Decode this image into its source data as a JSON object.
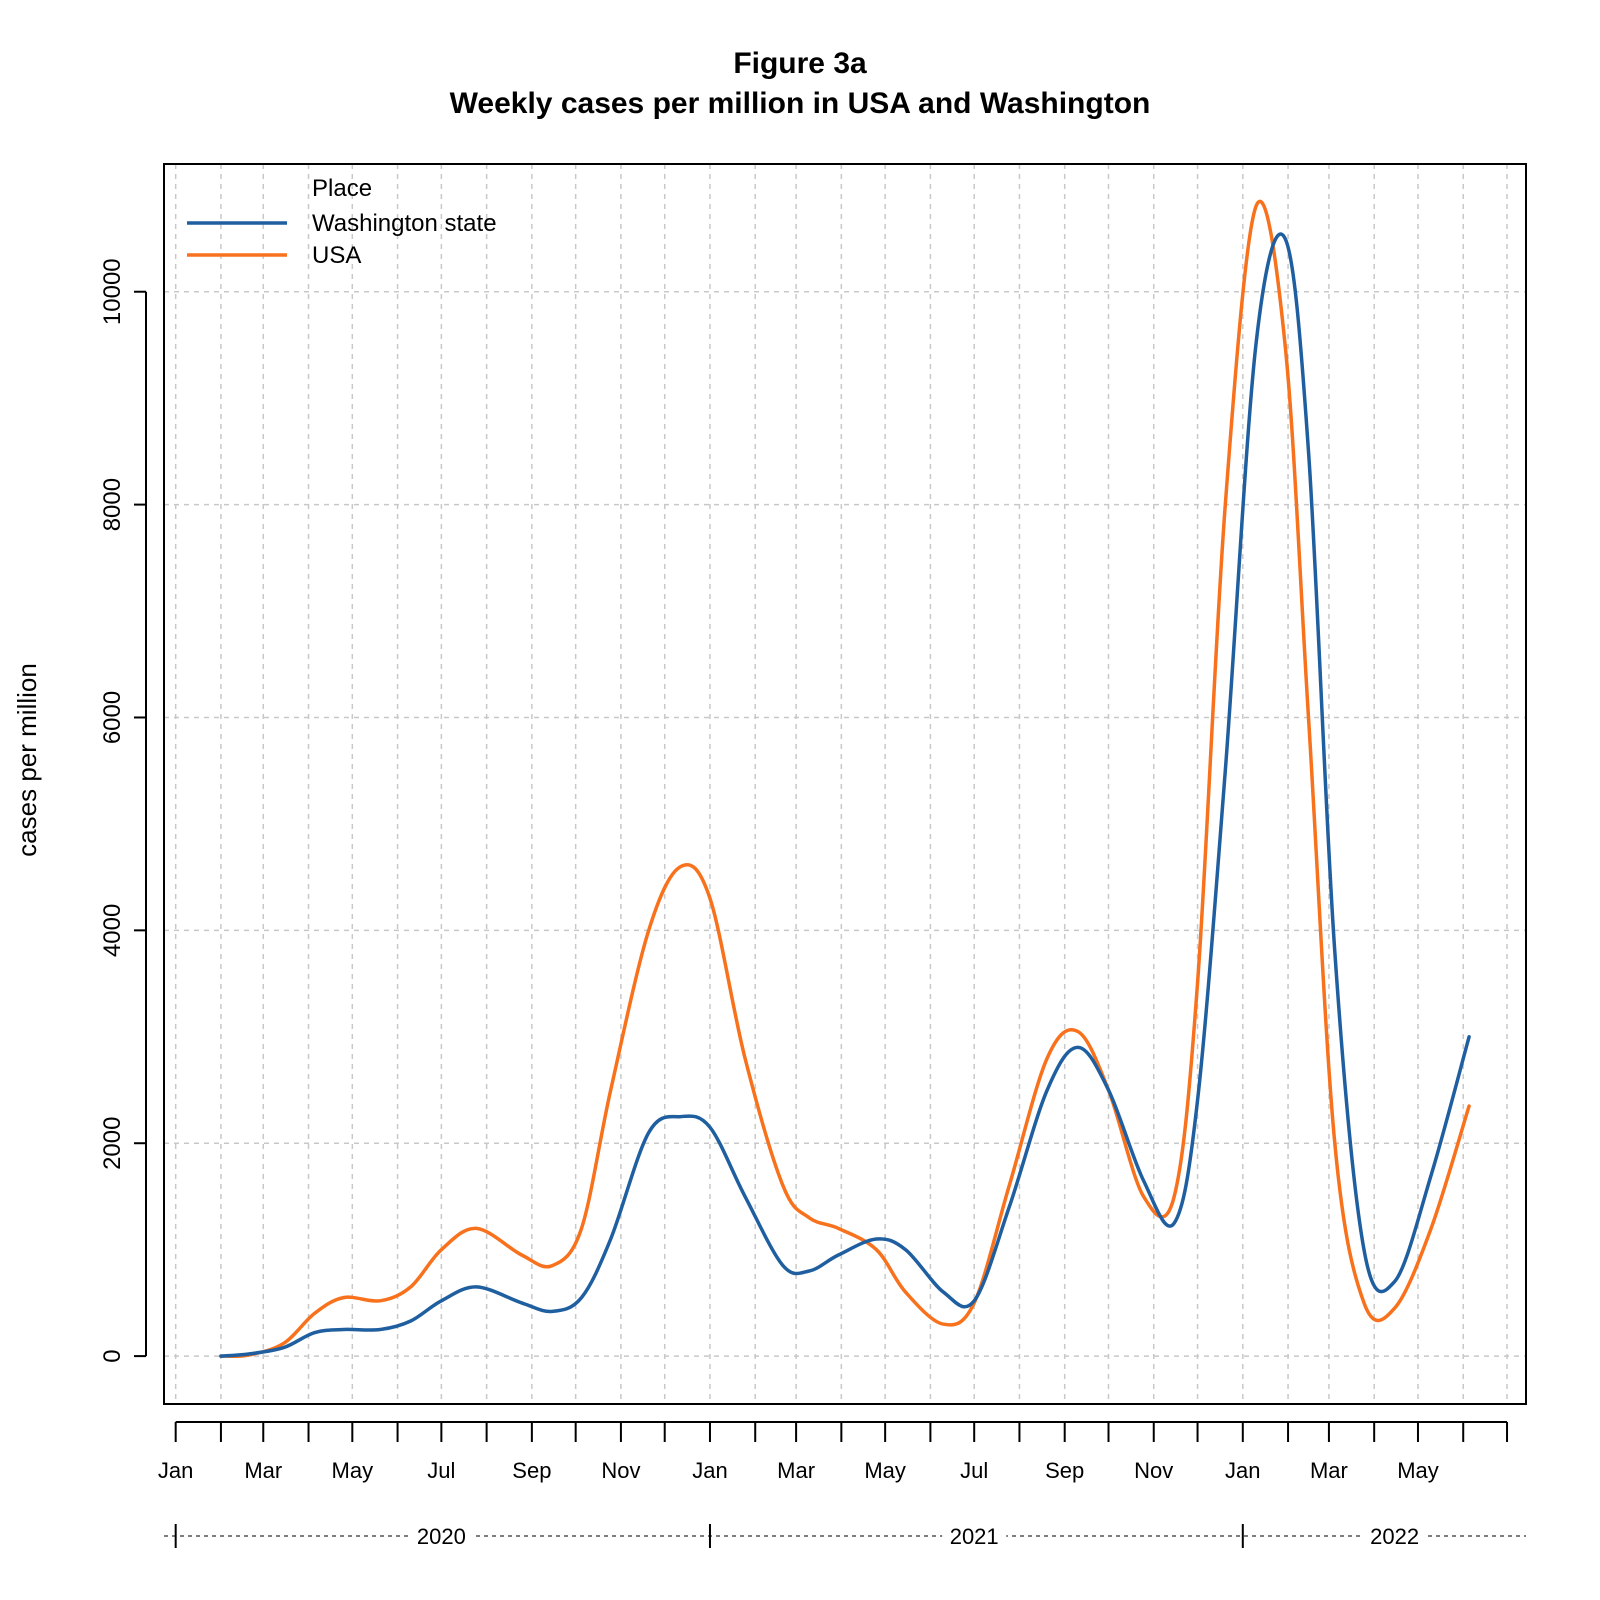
{
  "chart_data": {
    "type": "line",
    "title": "Figure 3a",
    "subtitle": "Weekly cases per million in USA and Washington",
    "xlabel": "",
    "ylabel": "cases per million",
    "ylim": [
      -450,
      11200
    ],
    "y_ticks": [
      0,
      2000,
      4000,
      6000,
      8000,
      10000
    ],
    "y_tick_labels": [
      "0",
      "2000",
      "4000",
      "6000",
      "8000",
      "10000"
    ],
    "xlim": [
      "2019-12-24",
      "2022-07-14"
    ],
    "month_ticks": [
      "2020-01-01",
      "2020-02-01",
      "2020-03-01",
      "2020-04-01",
      "2020-05-01",
      "2020-06-01",
      "2020-07-01",
      "2020-08-01",
      "2020-09-01",
      "2020-10-01",
      "2020-11-01",
      "2020-12-01",
      "2021-01-01",
      "2021-02-01",
      "2021-03-01",
      "2021-04-01",
      "2021-05-01",
      "2021-06-01",
      "2021-07-01",
      "2021-08-01",
      "2021-09-01",
      "2021-10-01",
      "2021-11-01",
      "2021-12-01",
      "2022-01-01",
      "2022-02-01",
      "2022-03-01",
      "2022-04-01",
      "2022-05-01",
      "2022-06-01",
      "2022-07-01"
    ],
    "month_labels": [
      {
        "date": "2020-01-01",
        "label": "Jan"
      },
      {
        "date": "2020-03-01",
        "label": "Mar"
      },
      {
        "date": "2020-05-01",
        "label": "May"
      },
      {
        "date": "2020-07-01",
        "label": "Jul"
      },
      {
        "date": "2020-09-01",
        "label": "Sep"
      },
      {
        "date": "2020-11-01",
        "label": "Nov"
      },
      {
        "date": "2021-01-01",
        "label": "Jan"
      },
      {
        "date": "2021-03-01",
        "label": "Mar"
      },
      {
        "date": "2021-05-01",
        "label": "May"
      },
      {
        "date": "2021-07-01",
        "label": "Jul"
      },
      {
        "date": "2021-09-01",
        "label": "Sep"
      },
      {
        "date": "2021-11-01",
        "label": "Nov"
      },
      {
        "date": "2022-01-01",
        "label": "Jan"
      },
      {
        "date": "2022-03-01",
        "label": "Mar"
      },
      {
        "date": "2022-05-01",
        "label": "May"
      }
    ],
    "years": [
      {
        "label": "2020",
        "start": "2020-01-01",
        "label_date": "2020-07-01"
      },
      {
        "label": "2021",
        "start": "2021-01-01",
        "label_date": "2021-07-01"
      },
      {
        "label": "2022",
        "start": "2022-01-01",
        "label_date": "2022-04-15"
      }
    ],
    "grid": true,
    "legend": {
      "title": "Place",
      "position": "top-left"
    },
    "series": [
      {
        "name": "Washington state",
        "color": "#1f5fa0",
        "x": [
          "2020-02-01",
          "2020-02-20",
          "2020-03-15",
          "2020-04-05",
          "2020-04-25",
          "2020-05-20",
          "2020-06-10",
          "2020-07-01",
          "2020-07-25",
          "2020-08-25",
          "2020-09-15",
          "2020-10-05",
          "2020-10-25",
          "2020-11-20",
          "2020-12-12",
          "2021-01-01",
          "2021-01-25",
          "2021-02-20",
          "2021-03-10",
          "2021-03-30",
          "2021-04-25",
          "2021-05-15",
          "2021-06-10",
          "2021-07-01",
          "2021-07-25",
          "2021-08-20",
          "2021-09-10",
          "2021-10-01",
          "2021-10-25",
          "2021-11-15",
          "2021-12-01",
          "2021-12-20",
          "2022-01-10",
          "2022-01-30",
          "2022-02-15",
          "2022-03-05",
          "2022-03-25",
          "2022-04-15",
          "2022-05-10",
          "2022-06-05"
        ],
        "y": [
          0,
          20,
          80,
          220,
          250,
          250,
          330,
          520,
          650,
          500,
          420,
          550,
          1100,
          2100,
          2250,
          2150,
          1500,
          850,
          800,
          950,
          1100,
          1000,
          600,
          520,
          1400,
          2500,
          2900,
          2500,
          1650,
          1250,
          2400,
          5500,
          9500,
          10500,
          8500,
          3800,
          1000,
          700,
          1700,
          3000
        ]
      },
      {
        "name": "USA",
        "color": "#f8711c",
        "x": [
          "2020-02-01",
          "2020-02-20",
          "2020-03-15",
          "2020-04-05",
          "2020-04-25",
          "2020-05-20",
          "2020-06-10",
          "2020-07-01",
          "2020-07-25",
          "2020-08-25",
          "2020-09-15",
          "2020-10-05",
          "2020-10-25",
          "2020-11-20",
          "2020-12-12",
          "2021-01-01",
          "2021-01-25",
          "2021-02-20",
          "2021-03-10",
          "2021-03-30",
          "2021-04-25",
          "2021-05-15",
          "2021-06-10",
          "2021-07-01",
          "2021-07-25",
          "2021-08-20",
          "2021-09-10",
          "2021-10-01",
          "2021-10-25",
          "2021-11-15",
          "2021-12-01",
          "2021-12-20",
          "2022-01-10",
          "2022-01-30",
          "2022-02-15",
          "2022-03-05",
          "2022-03-25",
          "2022-04-15",
          "2022-05-10",
          "2022-06-05"
        ],
        "y": [
          0,
          10,
          120,
          400,
          550,
          520,
          650,
          1000,
          1200,
          950,
          850,
          1200,
          2500,
          4000,
          4600,
          4300,
          2800,
          1600,
          1300,
          1200,
          1000,
          600,
          300,
          500,
          1600,
          2800,
          3050,
          2500,
          1500,
          1500,
          3500,
          8000,
          10800,
          9500,
          6000,
          2000,
          500,
          450,
          1200,
          2350
        ]
      }
    ]
  }
}
